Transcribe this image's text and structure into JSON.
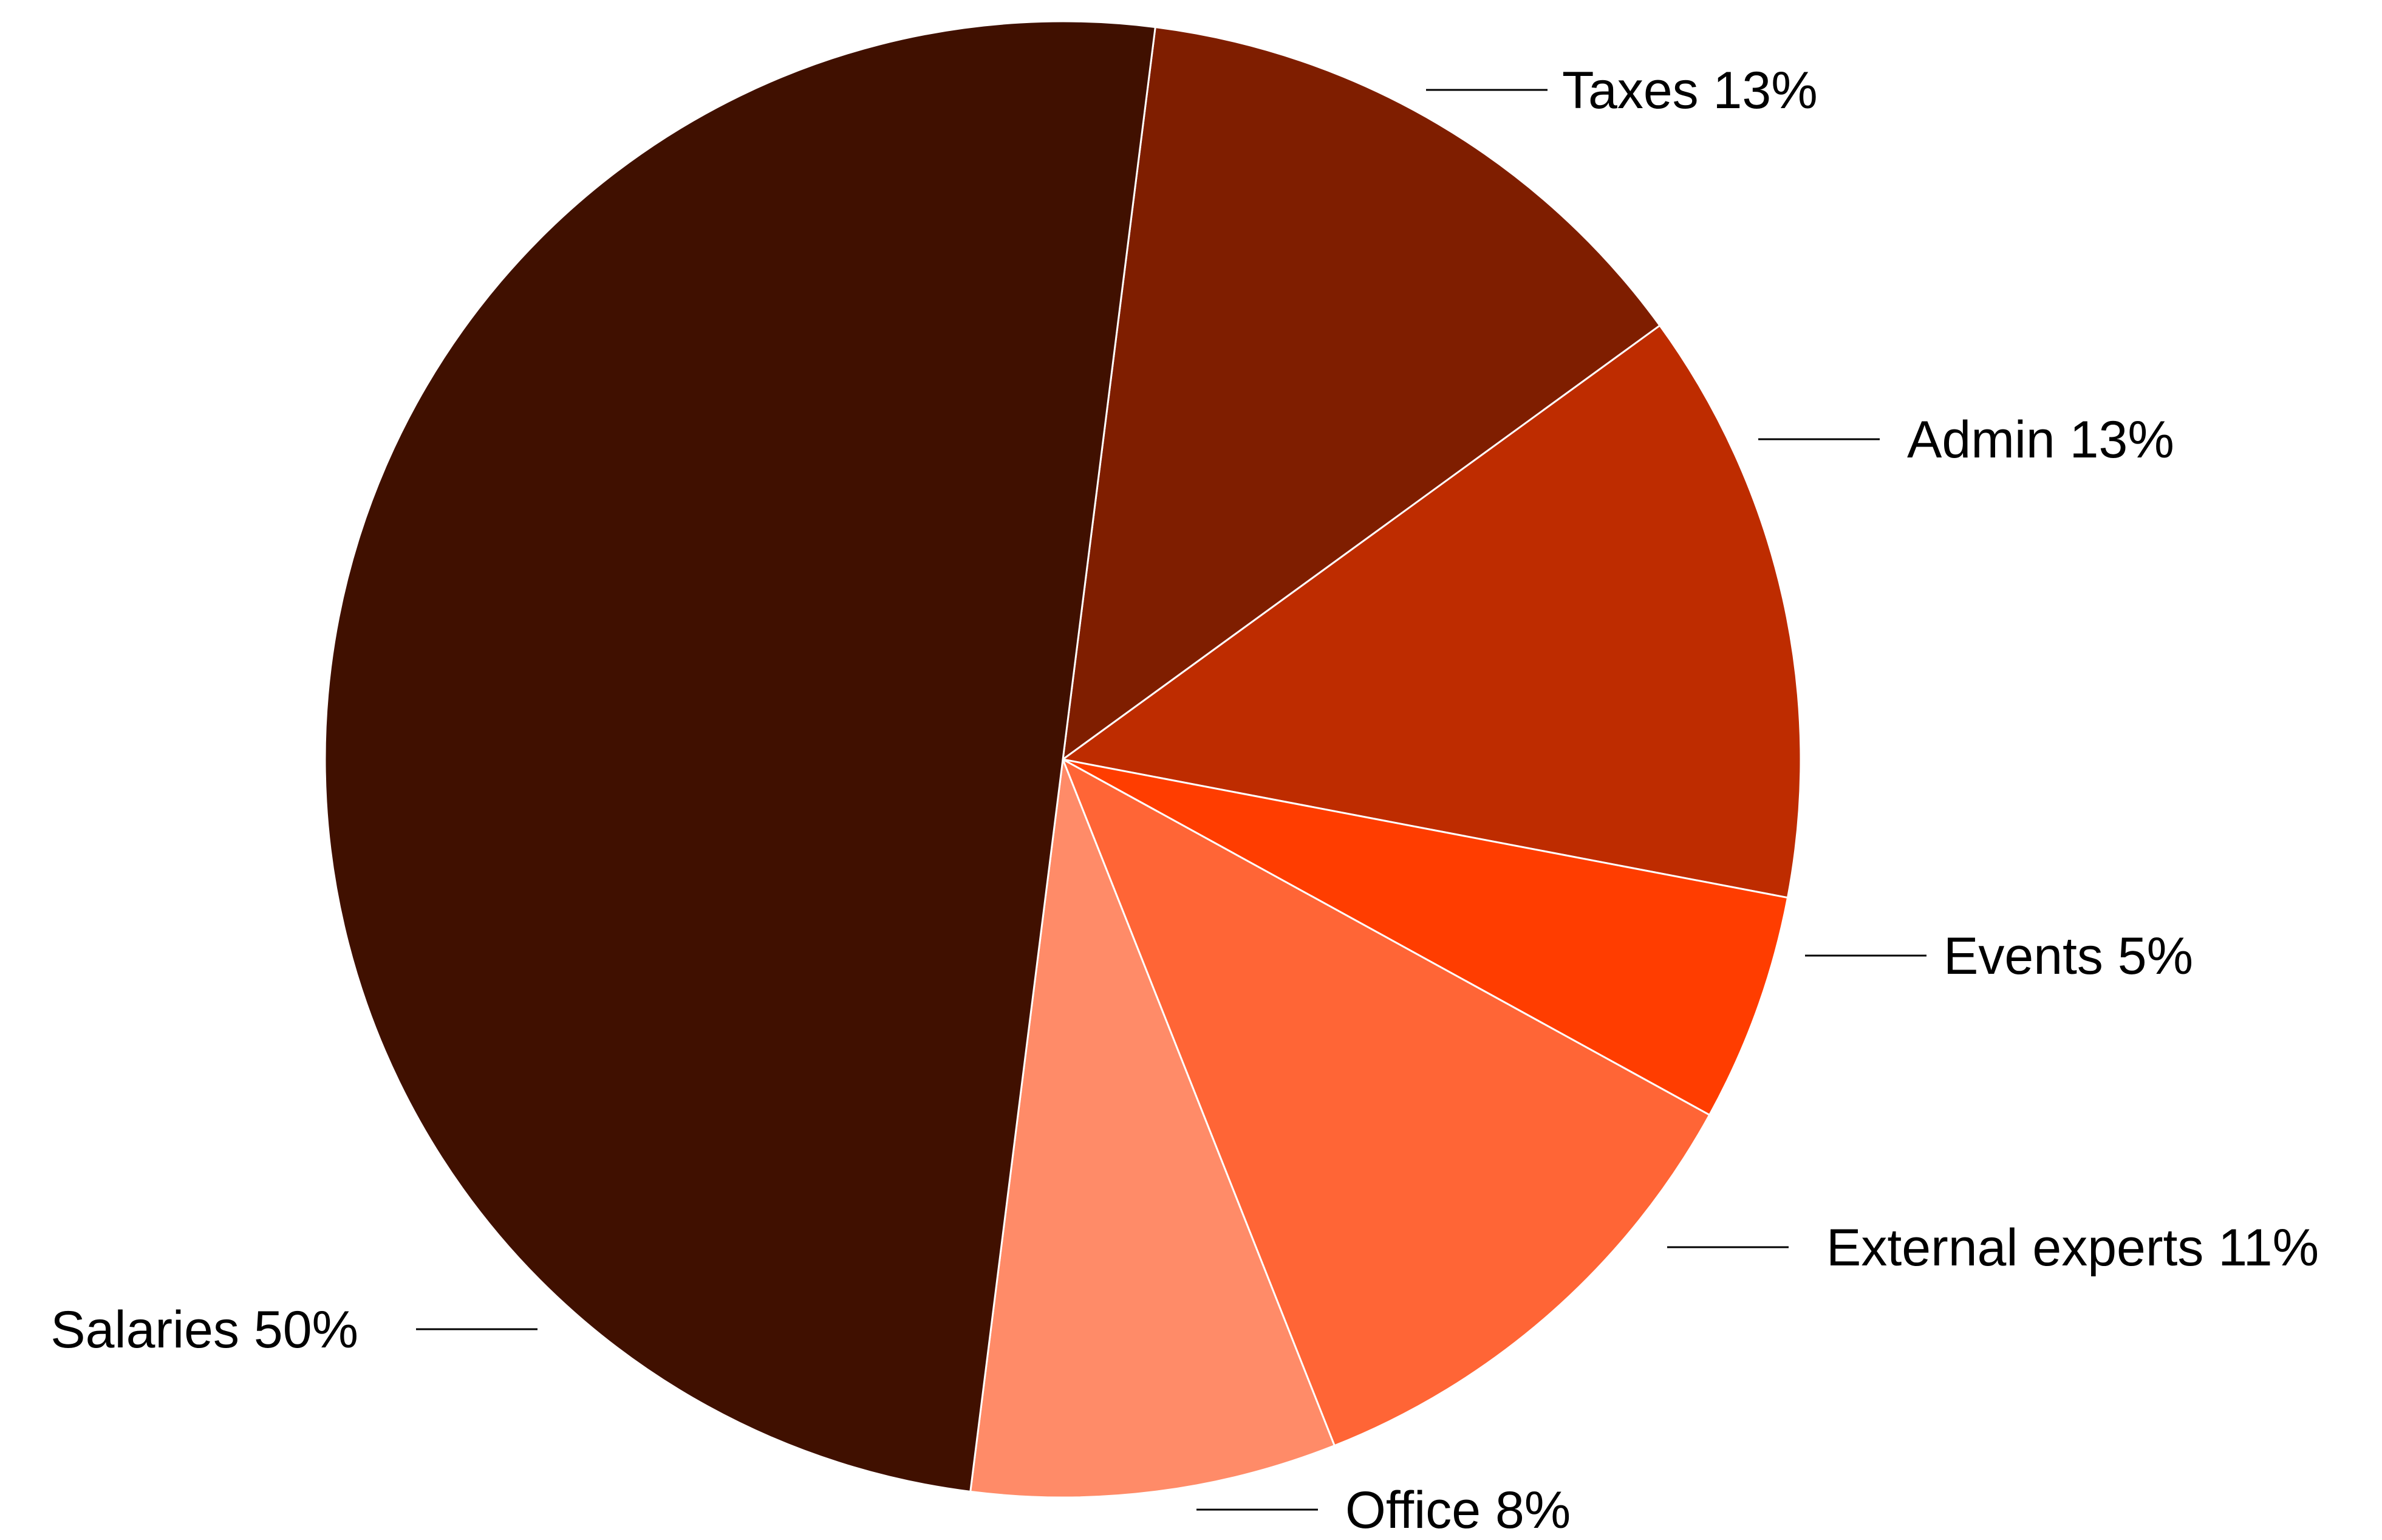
{
  "chart_data": {
    "type": "pie",
    "slices": [
      {
        "label": "Taxes 13%",
        "value": 13,
        "color": "#7F1E00"
      },
      {
        "label": "Admin 13%",
        "value": 13,
        "color": "#BE2C00"
      },
      {
        "label": "Events 5%",
        "value": 5,
        "color": "#FF3D00"
      },
      {
        "label": "External experts 11%",
        "value": 11,
        "color": "#FF6536"
      },
      {
        "label": "Office 8%",
        "value": 8,
        "color": "#FF8B68"
      },
      {
        "label": "Salaries 50%",
        "value": 50,
        "color": "#401000"
      }
    ],
    "legend": "none",
    "labels": "outside with leader lines"
  }
}
